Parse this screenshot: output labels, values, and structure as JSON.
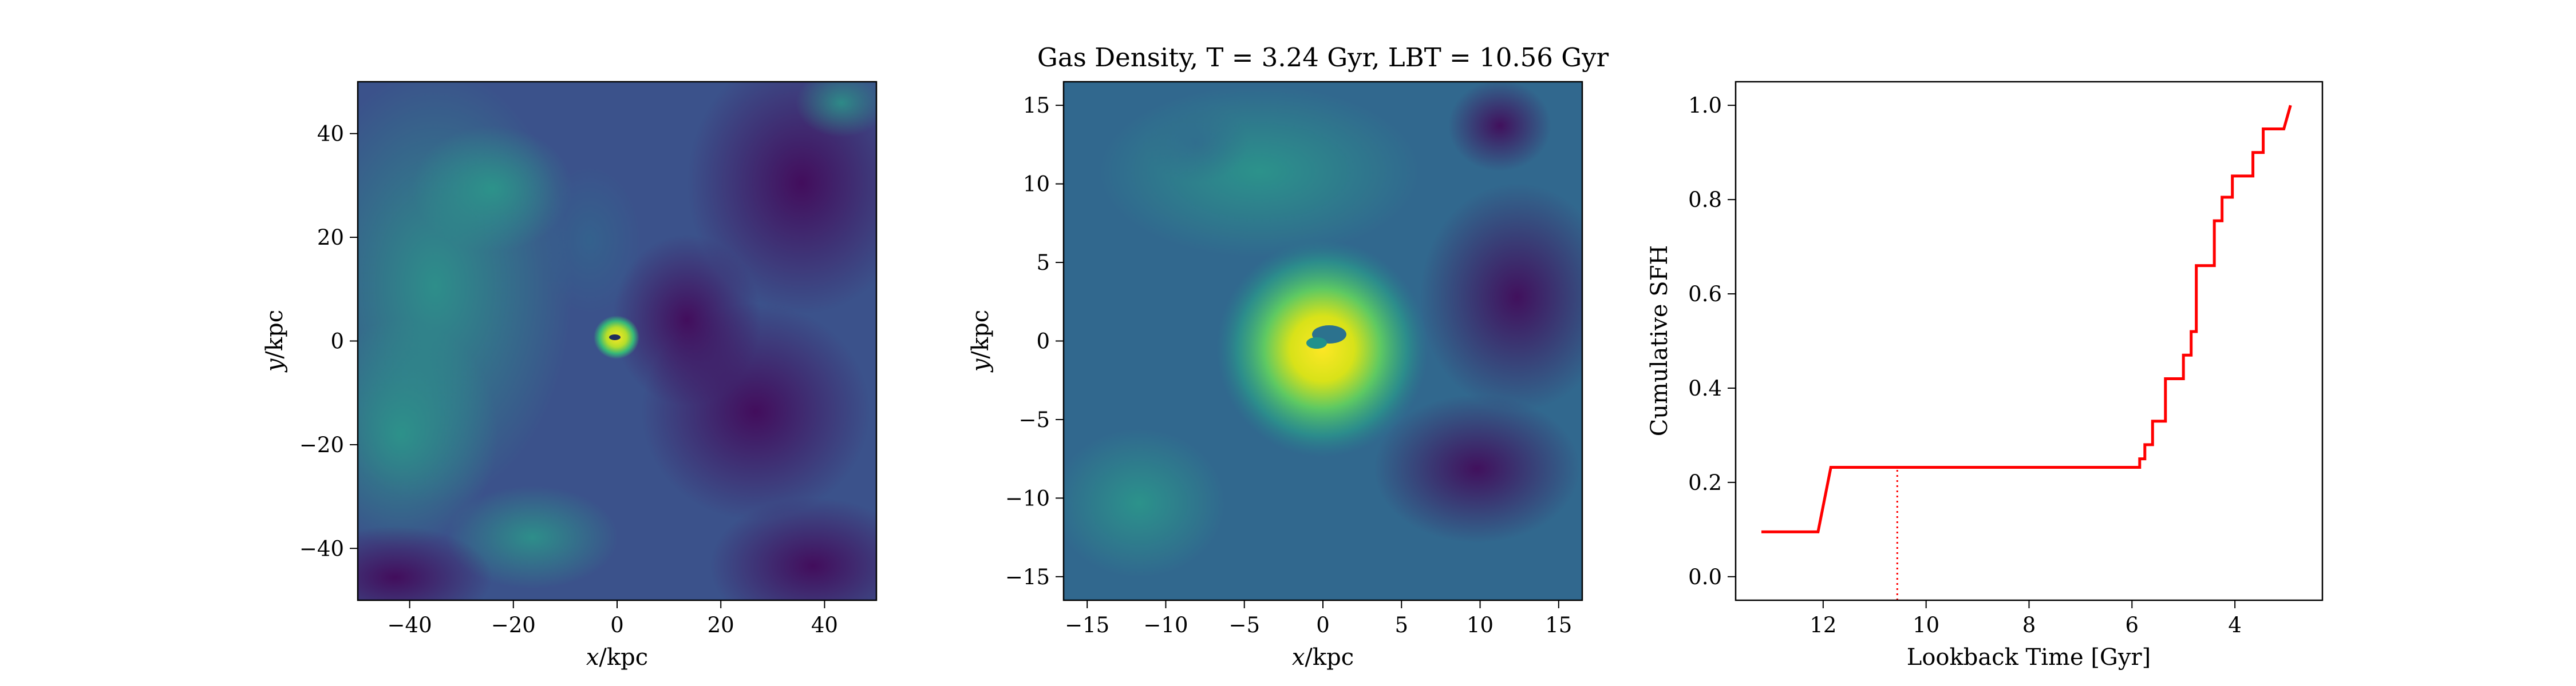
{
  "title": "Gas Density, T = 3.24 Gyr, LBT = 10.56 Gyr",
  "chart_data": [
    {
      "type": "heatmap",
      "colormap": "viridis",
      "xlabel": "x / kpc",
      "ylabel": "y / kpc",
      "xlim": [
        -50,
        50
      ],
      "ylim": [
        -50,
        50
      ],
      "xticks": [
        "−40",
        "−20",
        "0",
        "20",
        "40"
      ],
      "xtick_values": [
        -40,
        -20,
        0,
        20,
        40
      ],
      "yticks": [
        "−40",
        "−20",
        "0",
        "20",
        "40"
      ],
      "ytick_values": [
        -40,
        -20,
        0,
        20,
        40
      ]
    },
    {
      "type": "heatmap",
      "colormap": "viridis",
      "xlabel": "x / kpc",
      "ylabel": "y / kpc",
      "xlim": [
        -16.5,
        16.5
      ],
      "ylim": [
        -16.5,
        16.5
      ],
      "xticks": [
        "−15",
        "−10",
        "−5",
        "0",
        "5",
        "10",
        "15"
      ],
      "xtick_values": [
        -15,
        -10,
        -5,
        0,
        5,
        10,
        15
      ],
      "yticks": [
        "−15",
        "−10",
        "−5",
        "0",
        "5",
        "10",
        "15"
      ],
      "ytick_values": [
        -15,
        -10,
        -5,
        0,
        5,
        10,
        15
      ]
    },
    {
      "type": "line",
      "xlabel": "Lookback Time [Gyr]",
      "ylabel": "Cumulative SFH",
      "xlim": [
        13.7,
        2.3
      ],
      "ylim": [
        -0.05,
        1.05
      ],
      "x_inverted": true,
      "xticks": [
        "12",
        "10",
        "8",
        "6",
        "4"
      ],
      "xtick_values": [
        12,
        10,
        8,
        6,
        4
      ],
      "yticks": [
        "0.0",
        "0.2",
        "0.4",
        "0.6",
        "0.8",
        "1.0"
      ],
      "ytick_values": [
        0.0,
        0.2,
        0.4,
        0.6,
        0.8,
        1.0
      ],
      "series": [
        {
          "color": "#ff0000",
          "x": [
            13.2,
            12.1,
            12.1,
            11.85,
            5.85,
            5.85,
            5.75,
            5.75,
            5.6,
            5.6,
            5.35,
            5.35,
            5.0,
            5.0,
            4.85,
            4.85,
            4.75,
            4.75,
            4.62,
            4.62,
            4.4,
            4.4,
            4.25,
            4.25,
            4.05,
            4.05,
            3.85,
            3.85,
            3.65,
            3.65,
            3.45,
            3.45,
            3.25,
            3.25,
            3.05,
            3.05,
            2.92
          ],
          "y": [
            0.095,
            0.095,
            0.095,
            0.232,
            0.232,
            0.25,
            0.25,
            0.28,
            0.28,
            0.33,
            0.33,
            0.42,
            0.42,
            0.47,
            0.47,
            0.52,
            0.52,
            0.66,
            0.66,
            0.66,
            0.66,
            0.755,
            0.755,
            0.805,
            0.805,
            0.85,
            0.85,
            0.85,
            0.85,
            0.9,
            0.9,
            0.95,
            0.95,
            0.95,
            0.95,
            0.95,
            1.0
          ]
        }
      ],
      "vline": {
        "x": 10.56,
        "style": "dotted",
        "color": "#ff0000"
      }
    }
  ]
}
